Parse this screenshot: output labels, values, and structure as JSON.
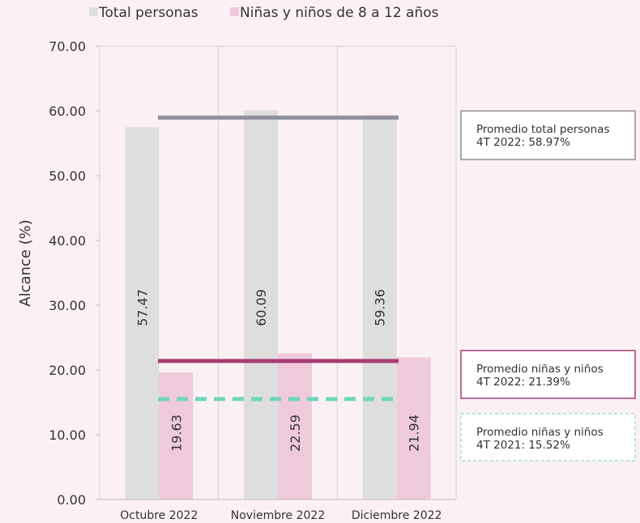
{
  "chart_data": {
    "type": "bar",
    "title": "",
    "xlabel": "",
    "ylabel": "Alcance (%)",
    "ylim": [
      0,
      70
    ],
    "yticks": [
      "0.00",
      "10.00",
      "20.00",
      "30.00",
      "40.00",
      "50.00",
      "60.00",
      "70.00"
    ],
    "categories": [
      "Octubre 2022",
      "Noviembre 2022",
      "Diciembre 2022"
    ],
    "grid": "vertical",
    "legend": "top-left",
    "series": [
      {
        "name": "Total personas",
        "values": [
          57.47,
          60.09,
          59.36
        ],
        "labels": [
          "57.47",
          "60.09",
          "59.36"
        ],
        "color": "#dedede"
      },
      {
        "name": "Niñas y niños de 8 a 12 años",
        "values": [
          19.63,
          22.59,
          21.94
        ],
        "labels": [
          "19.63",
          "22.59",
          "21.94"
        ],
        "color": "#efcadb"
      }
    ],
    "reference_lines": [
      {
        "value": 58.97,
        "style": "solid",
        "color": "#8f8f99",
        "annotation": [
          "Promedio total personas",
          "4T 2022: 58.97%"
        ],
        "border_color": "#8f8f8f"
      },
      {
        "value": 21.39,
        "style": "solid",
        "color": "#a63d72",
        "annotation": [
          "Promedio niñas y niños",
          "4T 2022: 21.39%"
        ],
        "border_color": "#a63d72"
      },
      {
        "value": 15.52,
        "style": "dashed",
        "color": "#6fd6bb",
        "annotation": [
          "Promedio niñas y niños",
          "4T 2021: 15.52%"
        ],
        "border_color": "#6fd6bb"
      }
    ]
  }
}
